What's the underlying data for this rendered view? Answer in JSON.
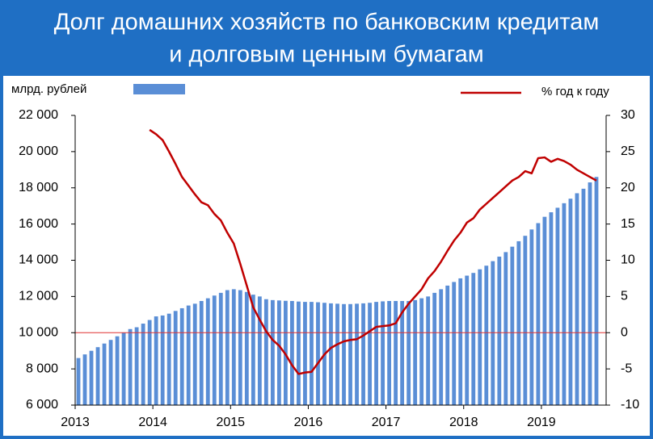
{
  "chart_data": {
    "type": "bar",
    "title_lines": [
      "Долг домашних хозяйств по банковским кредитам",
      "и долговым ценным бумагам"
    ],
    "categories": [
      "2013",
      null,
      null,
      null,
      null,
      null,
      null,
      null,
      null,
      null,
      null,
      null,
      "2014",
      null,
      null,
      null,
      null,
      null,
      null,
      null,
      null,
      null,
      null,
      null,
      "2015",
      null,
      null,
      null,
      null,
      null,
      null,
      null,
      null,
      null,
      null,
      null,
      "2016",
      null,
      null,
      null,
      null,
      null,
      null,
      null,
      null,
      null,
      null,
      null,
      "2017",
      null,
      null,
      null,
      null,
      null,
      null,
      null,
      null,
      null,
      null,
      null,
      "2018",
      null,
      null,
      null,
      null,
      null,
      null,
      null,
      null,
      null,
      null,
      null,
      "2019",
      null,
      null,
      null,
      null,
      null,
      null,
      null,
      null
    ],
    "series": [
      {
        "name": "млрд. рублей",
        "type": "bar",
        "color": "#5a8ed6",
        "axis": "y",
        "values": [
          8600,
          8800,
          9000,
          9200,
          9400,
          9600,
          9800,
          10000,
          10200,
          10300,
          10500,
          10700,
          10900,
          10950,
          11050,
          11200,
          11350,
          11500,
          11600,
          11750,
          11900,
          12050,
          12200,
          12350,
          12400,
          12350,
          12250,
          12100,
          12000,
          11850,
          11800,
          11780,
          11760,
          11750,
          11720,
          11700,
          11700,
          11680,
          11650,
          11620,
          11600,
          11580,
          11580,
          11600,
          11620,
          11650,
          11700,
          11730,
          11750,
          11750,
          11750,
          11750,
          11800,
          11900,
          12000,
          12200,
          12400,
          12600,
          12800,
          13000,
          13150,
          13300,
          13500,
          13700,
          13950,
          14200,
          14450,
          14750,
          15050,
          15350,
          15700,
          16050,
          16400,
          16650,
          16900,
          17150,
          17400,
          17700,
          17950,
          18300,
          18600
        ]
      },
      {
        "name": "%  год к году",
        "type": "line",
        "color": "#c00000",
        "axis": "y2",
        "values": [
          null,
          null,
          null,
          null,
          null,
          null,
          null,
          null,
          null,
          null,
          null,
          28.0,
          27.4,
          26.6,
          25.0,
          23.3,
          21.5,
          20.3,
          19.1,
          18.0,
          17.6,
          16.4,
          15.5,
          13.8,
          12.3,
          9.5,
          6.5,
          3.5,
          1.8,
          0.2,
          -1.0,
          -1.8,
          -3.0,
          -4.5,
          -5.7,
          -5.5,
          -5.4,
          -4.2,
          -3.0,
          -2.1,
          -1.6,
          -1.2,
          -1.0,
          -0.9,
          -0.4,
          0.2,
          0.8,
          0.9,
          1.0,
          1.3,
          2.8,
          4.0,
          5.0,
          6.0,
          7.5,
          8.5,
          9.8,
          11.3,
          12.7,
          13.8,
          15.2,
          15.8,
          17.0,
          17.8,
          18.6,
          19.4,
          20.2,
          21.0,
          21.5,
          22.3,
          22.0,
          24.1,
          24.2,
          23.6,
          24.0,
          23.7,
          23.2,
          22.5,
          22.0,
          21.5,
          21.0
        ]
      }
    ],
    "ylim": [
      6000,
      22000
    ],
    "yticks": [
      {
        "value": 6000,
        "label": "6 000"
      },
      {
        "value": 8000,
        "label": "8 000"
      },
      {
        "value": 10000,
        "label": "10 000"
      },
      {
        "value": 12000,
        "label": "12 000"
      },
      {
        "value": 14000,
        "label": "14 000"
      },
      {
        "value": 16000,
        "label": "16 000"
      },
      {
        "value": 18000,
        "label": "18 000"
      },
      {
        "value": 20000,
        "label": "20 000"
      },
      {
        "value": 22000,
        "label": "22 000"
      }
    ],
    "y2lim": [
      -10,
      30
    ],
    "y2ticks": [
      -10,
      -5,
      0,
      5,
      10,
      15,
      20,
      25,
      30
    ],
    "zero_line_color": "#e03030"
  }
}
